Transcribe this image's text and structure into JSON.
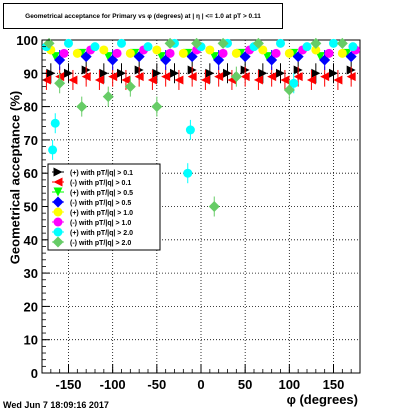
{
  "title": "Geometrical acceptance for Primary vs φ (degrees) at | η | <= 1.0 at pT > 0.11",
  "timestamp": "Wed Jun  7 18:09:16 2017",
  "chart_data": {
    "type": "scatter",
    "title": "Geometrical acceptance for Primary vs φ (degrees) at | η | <= 1.0 at pT > 0.11",
    "xlabel": "φ (degrees)",
    "ylabel": "Geometrical acceptance (%)",
    "xlim": [
      -180,
      180
    ],
    "ylim": [
      0,
      100
    ],
    "xticks": [
      -150,
      -100,
      -50,
      0,
      50,
      100,
      150
    ],
    "yticks": [
      0,
      10,
      20,
      30,
      40,
      50,
      60,
      70,
      80,
      90,
      100
    ],
    "grid": true,
    "legend_position": "left-middle",
    "series": [
      {
        "name": "(+) with pT/|q| > 0.1",
        "color": "#000000",
        "marker": "triangle-right",
        "points": [
          [
            -170,
            90
          ],
          [
            -150,
            90
          ],
          [
            -130,
            91
          ],
          [
            -110,
            90
          ],
          [
            -90,
            90
          ],
          [
            -70,
            91
          ],
          [
            -50,
            90
          ],
          [
            -30,
            90
          ],
          [
            -10,
            91
          ],
          [
            10,
            90
          ],
          [
            30,
            90
          ],
          [
            50,
            91
          ],
          [
            70,
            90
          ],
          [
            90,
            90
          ],
          [
            110,
            91
          ],
          [
            130,
            90
          ],
          [
            150,
            90
          ],
          [
            170,
            91
          ]
        ]
      },
      {
        "name": "(-) with pT/|q| > 0.1",
        "color": "#ff0000",
        "marker": "triangle-left",
        "points": [
          [
            -175,
            88
          ],
          [
            -160,
            89
          ],
          [
            -145,
            88
          ],
          [
            -130,
            89
          ],
          [
            -115,
            88
          ],
          [
            -100,
            89
          ],
          [
            -85,
            88
          ],
          [
            -70,
            89
          ],
          [
            -55,
            88
          ],
          [
            -40,
            89
          ],
          [
            -25,
            88
          ],
          [
            -10,
            89
          ],
          [
            5,
            88
          ],
          [
            20,
            89
          ],
          [
            35,
            88
          ],
          [
            50,
            89
          ],
          [
            65,
            88
          ],
          [
            80,
            89
          ],
          [
            95,
            88
          ],
          [
            110,
            89
          ],
          [
            125,
            88
          ],
          [
            140,
            89
          ],
          [
            155,
            88
          ],
          [
            170,
            89
          ]
        ]
      },
      {
        "name": "(+) with pT/|q| > 0.5",
        "color": "#00ff00",
        "marker": "triangle-down",
        "points": [
          [
            -165,
            95
          ],
          [
            -135,
            96
          ],
          [
            -105,
            95
          ],
          [
            -75,
            96
          ],
          [
            -45,
            95
          ],
          [
            -15,
            96
          ],
          [
            15,
            95
          ],
          [
            45,
            96
          ],
          [
            75,
            95
          ],
          [
            105,
            96
          ],
          [
            135,
            95
          ],
          [
            165,
            96
          ]
        ]
      },
      {
        "name": "(-) with pT/|q| > 0.5",
        "color": "#0000ff",
        "marker": "diamond",
        "points": [
          [
            -160,
            94
          ],
          [
            -130,
            95
          ],
          [
            -100,
            94
          ],
          [
            -70,
            95
          ],
          [
            -40,
            94
          ],
          [
            -10,
            95
          ],
          [
            20,
            94
          ],
          [
            50,
            95
          ],
          [
            80,
            94
          ],
          [
            110,
            95
          ],
          [
            140,
            94
          ],
          [
            170,
            95
          ]
        ]
      },
      {
        "name": "(+) with pT/|q| > 1.0",
        "color": "#ffff00",
        "marker": "circle",
        "points": [
          [
            -170,
            97
          ],
          [
            -140,
            96
          ],
          [
            -110,
            97
          ],
          [
            -80,
            96
          ],
          [
            -50,
            97
          ],
          [
            -20,
            96
          ],
          [
            10,
            97
          ],
          [
            40,
            96
          ],
          [
            70,
            97
          ],
          [
            100,
            96
          ],
          [
            130,
            97
          ],
          [
            160,
            96
          ]
        ]
      },
      {
        "name": "(-) with pT/|q| > 1.0",
        "color": "#ff00ff",
        "marker": "circle",
        "points": [
          [
            -155,
            96
          ],
          [
            -125,
            97
          ],
          [
            -95,
            96
          ],
          [
            -65,
            97
          ],
          [
            -35,
            96
          ],
          [
            -5,
            97
          ],
          [
            25,
            96
          ],
          [
            55,
            97
          ],
          [
            85,
            96
          ],
          [
            115,
            97
          ],
          [
            145,
            96
          ],
          [
            175,
            97
          ]
        ]
      },
      {
        "name": "(+) with pT/|q| > 2.0",
        "color": "#00ffff",
        "marker": "circle",
        "points": [
          [
            -175,
            98
          ],
          [
            -168,
            67
          ],
          [
            -165,
            75
          ],
          [
            -150,
            99
          ],
          [
            -120,
            98
          ],
          [
            -90,
            99
          ],
          [
            -60,
            98
          ],
          [
            -30,
            99
          ],
          [
            -15,
            60
          ],
          [
            -12,
            73
          ],
          [
            0,
            98
          ],
          [
            30,
            99
          ],
          [
            60,
            98
          ],
          [
            90,
            99
          ],
          [
            105,
            87
          ],
          [
            120,
            98
          ],
          [
            150,
            99
          ],
          [
            172,
            98
          ]
        ]
      },
      {
        "name": "(-) with pT/|q| > 2.0",
        "color": "#66cc66",
        "marker": "diamond",
        "points": [
          [
            -172,
            99
          ],
          [
            -160,
            87
          ],
          [
            -135,
            80
          ],
          [
            -105,
            83
          ],
          [
            -80,
            86
          ],
          [
            -50,
            80
          ],
          [
            -35,
            99
          ],
          [
            -5,
            99
          ],
          [
            15,
            50
          ],
          [
            25,
            99
          ],
          [
            40,
            89
          ],
          [
            65,
            99
          ],
          [
            100,
            85
          ],
          [
            130,
            99
          ],
          [
            160,
            99
          ]
        ]
      }
    ]
  }
}
